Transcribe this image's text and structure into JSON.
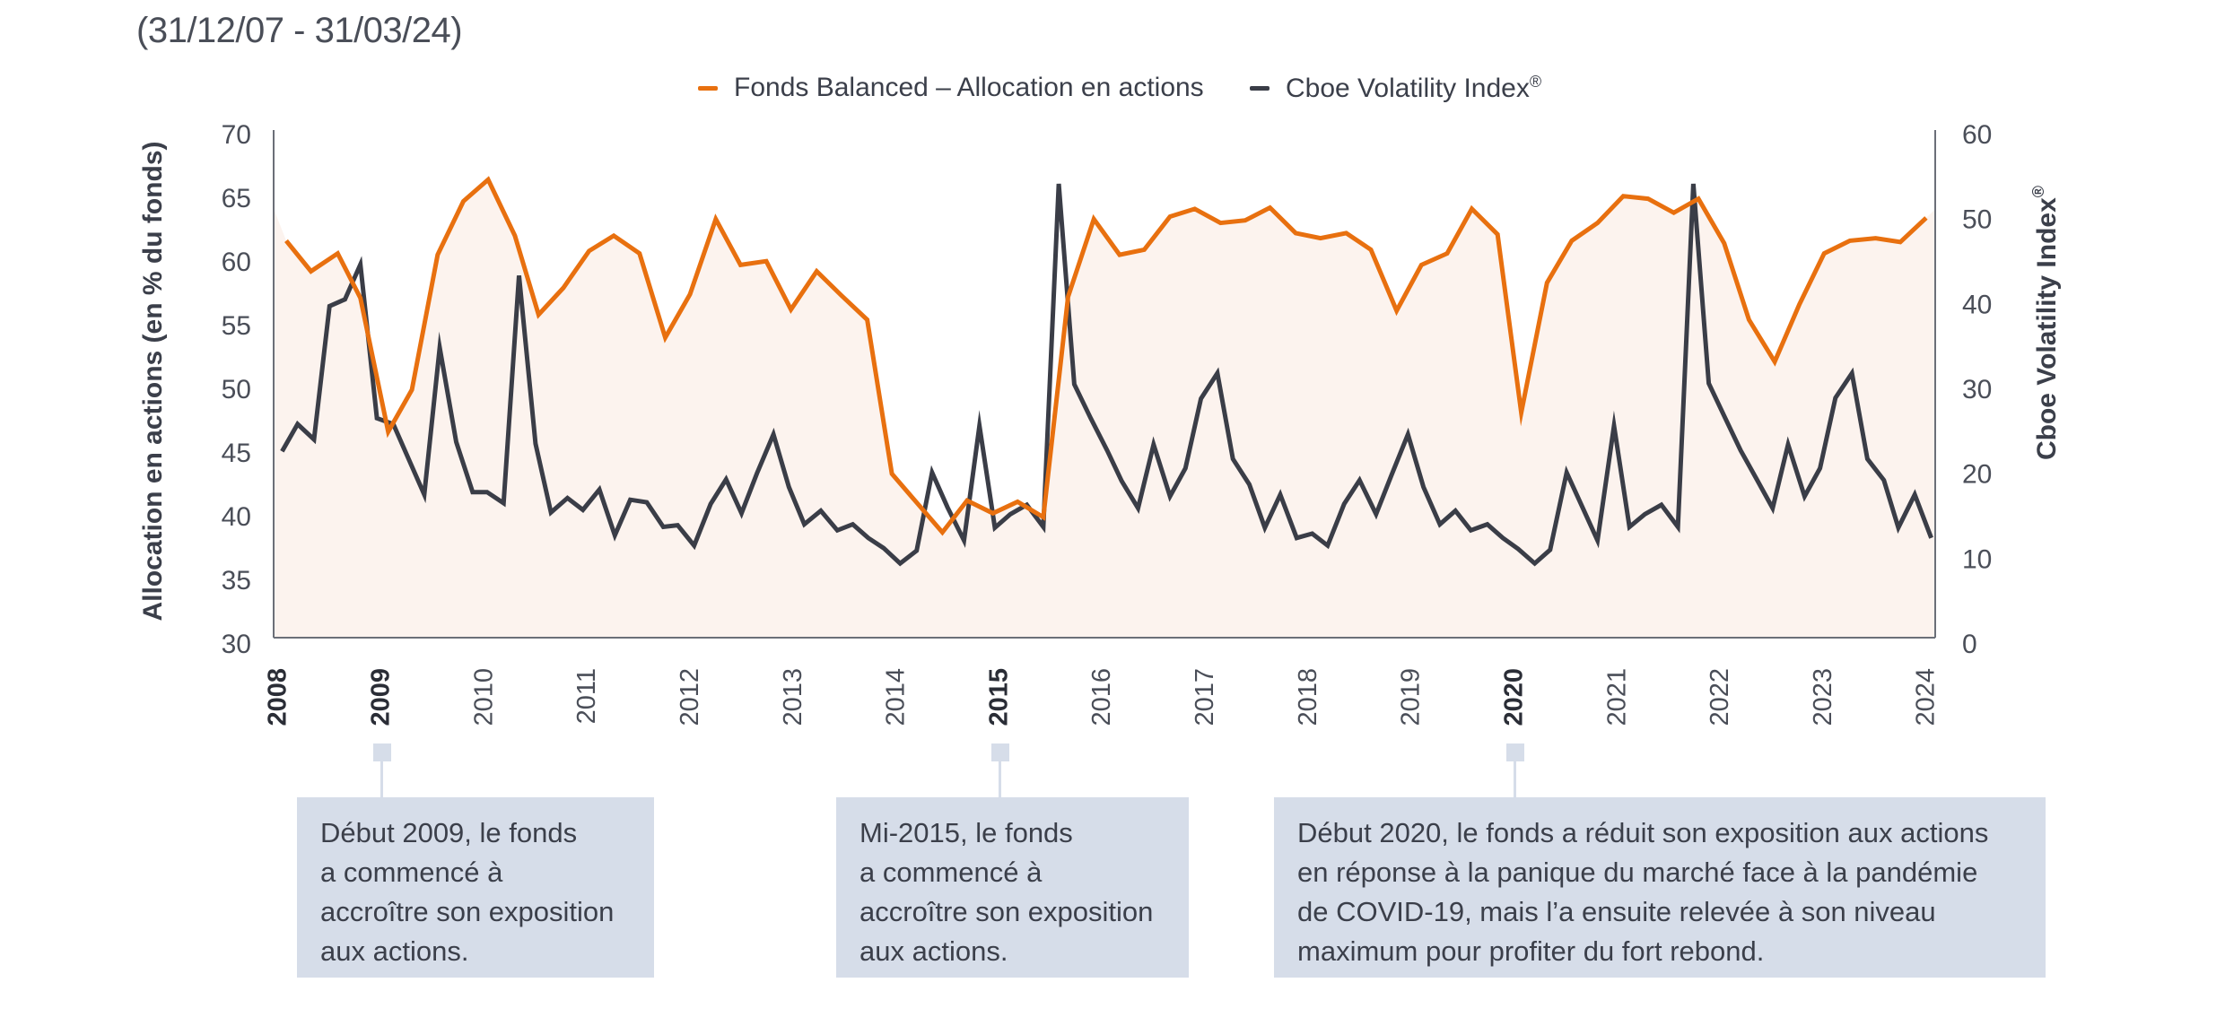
{
  "subtitle": "(31/12/07 - 31/03/24)",
  "legend": [
    {
      "label": "Fonds Balanced – Allocation en actions",
      "color": "#e8700f"
    },
    {
      "label": "Cboe Volatility Index",
      "sup": "®",
      "color": "#3a3d47"
    }
  ],
  "colors": {
    "fund_line": "#e8700f",
    "vix_line": "#3a3d47",
    "fill": "#fcf3ee",
    "axis": "#6b6f78",
    "callout_bg": "#d6dde9"
  },
  "chart_data": {
    "type": "line",
    "title": "(31/12/07 - 31/03/24)",
    "xlabel": "",
    "ylabel": "Allocation en actions (en % du fonds)",
    "y2label": "Cboe Volatility Index®",
    "xlim": [
      2008,
      2024
    ],
    "ylim": [
      30,
      70
    ],
    "y2lim": [
      0,
      60
    ],
    "yticks": [
      "30",
      "35",
      "40",
      "45",
      "50",
      "55",
      "60",
      "65",
      "70"
    ],
    "y2ticks": [
      "0",
      "10",
      "20",
      "30",
      "40",
      "50",
      "60"
    ],
    "xticks": [
      {
        "label": "2008",
        "year": 2008,
        "bold": true
      },
      {
        "label": "2009",
        "year": 2009,
        "bold": true
      },
      {
        "label": "2010",
        "year": 2010,
        "bold": false
      },
      {
        "label": "2011",
        "year": 2011,
        "bold": false
      },
      {
        "label": "2012",
        "year": 2012,
        "bold": false
      },
      {
        "label": "2013",
        "year": 2013,
        "bold": false
      },
      {
        "label": "2014",
        "year": 2014,
        "bold": false
      },
      {
        "label": "2015",
        "year": 2015,
        "bold": true
      },
      {
        "label": "2016",
        "year": 2016,
        "bold": false
      },
      {
        "label": "2017",
        "year": 2017,
        "bold": false
      },
      {
        "label": "2018",
        "year": 2018,
        "bold": false
      },
      {
        "label": "2019",
        "year": 2019,
        "bold": false
      },
      {
        "label": "2020",
        "year": 2020,
        "bold": true
      },
      {
        "label": "2021",
        "year": 2021,
        "bold": false
      },
      {
        "label": "2022",
        "year": 2022,
        "bold": false
      },
      {
        "label": "2023",
        "year": 2023,
        "bold": false
      },
      {
        "label": "2024",
        "year": 2024,
        "bold": false
      }
    ],
    "grid": false,
    "legend_position": "top-center",
    "series": [
      {
        "name": "Fonds Balanced – Allocation en actions",
        "axis": "left",
        "area_fill": true,
        "x": [
          2008.07,
          2008.31,
          2008.57,
          2008.79,
          2009.06,
          2009.29,
          2009.54,
          2009.79,
          2010.03,
          2010.29,
          2010.52,
          2010.76,
          2011.01,
          2011.25,
          2011.5,
          2011.75,
          2011.99,
          2012.24,
          2012.48,
          2012.73,
          2012.97,
          2013.22,
          2013.46,
          2013.71,
          2013.95,
          2014.44,
          2014.68,
          2014.93,
          2015.17,
          2015.42,
          2015.66,
          2015.91,
          2016.16,
          2016.4,
          2016.65,
          2016.89,
          2017.14,
          2017.38,
          2017.62,
          2017.87,
          2018.11,
          2018.36,
          2018.6,
          2018.85,
          2019.09,
          2019.34,
          2019.58,
          2019.83,
          2020.06,
          2020.31,
          2020.55,
          2020.8,
          2021.05,
          2021.29,
          2021.54,
          2021.78,
          2022.03,
          2022.27,
          2022.52,
          2022.76,
          2023.0,
          2023.25,
          2023.5,
          2023.74,
          2023.99
        ],
        "values": [
          61.8,
          59.4,
          60.8,
          57.3,
          46.8,
          50.1,
          60.7,
          64.9,
          66.6,
          62.2,
          56.0,
          58.1,
          61.0,
          62.2,
          60.8,
          54.2,
          57.6,
          63.5,
          59.9,
          60.2,
          56.4,
          59.4,
          57.5,
          55.6,
          43.5,
          38.9,
          41.4,
          40.4,
          41.3,
          40.1,
          57.4,
          63.5,
          60.7,
          61.1,
          63.7,
          64.3,
          63.2,
          63.4,
          64.4,
          62.4,
          62.0,
          62.4,
          61.1,
          56.3,
          59.9,
          60.8,
          64.3,
          62.3,
          48.3,
          58.5,
          61.8,
          63.2,
          65.3,
          65.1,
          64.0,
          65.1,
          61.6,
          55.6,
          52.3,
          56.8,
          60.8,
          61.8,
          62.0,
          61.7,
          63.6
        ]
      },
      {
        "name": "Cboe Volatility Index®",
        "axis": "right",
        "x": [
          2008.03,
          2008.18,
          2008.34,
          2008.49,
          2008.64,
          2008.79,
          2008.95,
          2009.11,
          2009.41,
          2009.56,
          2009.72,
          2009.88,
          2010.02,
          2010.18,
          2010.33,
          2010.49,
          2010.64,
          2010.8,
          2010.95,
          2011.11,
          2011.26,
          2011.41,
          2011.57,
          2011.73,
          2011.87,
          2012.03,
          2012.19,
          2012.34,
          2012.49,
          2012.64,
          2012.8,
          2012.95,
          2013.1,
          2013.26,
          2013.42,
          2013.57,
          2013.72,
          2013.87,
          2014.03,
          2014.19,
          2014.34,
          2014.49,
          2014.65,
          2014.8,
          2014.95,
          2015.1,
          2015.26,
          2015.42,
          2015.57,
          2015.72,
          2015.88,
          2016.04,
          2016.18,
          2016.34,
          2016.49,
          2016.65,
          2016.8,
          2016.95,
          2017.11,
          2017.26,
          2017.42,
          2017.57,
          2017.72,
          2017.88,
          2018.03,
          2018.18,
          2018.34,
          2018.49,
          2018.65,
          2018.8,
          2018.96,
          2019.11,
          2019.27,
          2019.42,
          2019.57,
          2019.73,
          2019.88,
          2020.03,
          2020.19,
          2020.34,
          2020.5,
          2020.65,
          2020.8,
          2020.96,
          2021.11,
          2021.26,
          2021.42,
          2021.58,
          2021.73,
          2021.88,
          2022.04,
          2022.19,
          2022.35,
          2022.5,
          2022.65,
          2022.81,
          2022.96,
          2023.11,
          2023.27,
          2023.42,
          2023.58,
          2023.72,
          2023.88,
          2024.04
        ],
        "values": [
          22.9,
          26.1,
          24.3,
          40.0,
          40.8,
          44.9,
          26.8,
          26.1,
          17.8,
          35.1,
          24.0,
          18.1,
          18.1,
          16.8,
          43.6,
          23.8,
          15.7,
          17.4,
          16.0,
          18.4,
          13.0,
          17.2,
          16.9,
          14.0,
          14.2,
          11.8,
          16.7,
          19.6,
          15.6,
          20.3,
          24.9,
          18.7,
          14.3,
          15.9,
          13.6,
          14.3,
          12.7,
          11.5,
          9.7,
          11.2,
          20.4,
          16.3,
          12.4,
          25.9,
          13.9,
          15.5,
          16.6,
          14.0,
          54.4,
          30.8,
          26.8,
          23.0,
          19.4,
          16.2,
          23.7,
          17.6,
          20.9,
          29.1,
          32.1,
          22.0,
          19.0,
          13.9,
          17.8,
          12.7,
          13.2,
          11.8,
          16.7,
          19.5,
          15.5,
          20.1,
          24.9,
          18.7,
          14.3,
          15.9,
          13.6,
          14.3,
          12.7,
          11.4,
          9.7,
          11.3,
          20.4,
          16.4,
          12.4,
          25.9,
          14.0,
          15.5,
          16.6,
          14.0,
          54.4,
          30.9,
          26.8,
          23.0,
          19.5,
          16.2,
          23.7,
          17.6,
          20.9,
          29.2,
          32.1,
          22.0,
          19.5,
          13.9,
          17.8,
          12.7
        ]
      }
    ],
    "annotations": [
      {
        "year": 2009,
        "lines": [
          "Début 2009, le fonds",
          "a commencé à",
          "accroître son exposition",
          "aux actions."
        ]
      },
      {
        "year": 2015,
        "lines": [
          "Mi-2015, le fonds",
          "a commencé à",
          "accroître son exposition",
          "aux actions."
        ]
      },
      {
        "year": 2020,
        "lines": [
          "Début 2020, le fonds a réduit son exposition aux actions",
          "en réponse à la panique du marché face à la pandémie",
          "de COVID-19, mais l’a ensuite relevée à son niveau",
          "maximum pour profiter du fort rebond."
        ]
      }
    ]
  }
}
